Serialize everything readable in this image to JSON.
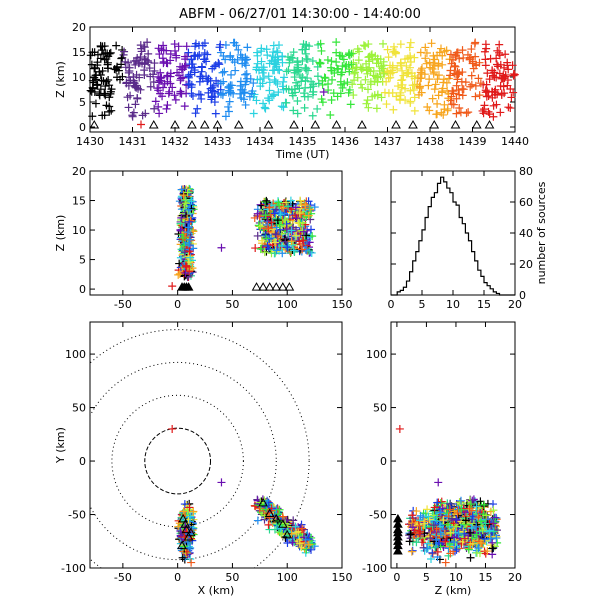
{
  "title": "ABFM - 06/27/01 14:30:00 - 14:40:00",
  "chart_data": [
    {
      "panel": "time-height",
      "type": "scatter",
      "xlabel": "Time (UT)",
      "ylabel": "Z (km)",
      "xlim": [
        1430,
        1440
      ],
      "ylim": [
        -1,
        20
      ],
      "xticks": [
        "1430",
        "1431",
        "1432",
        "1433",
        "1434",
        "1435",
        "1436",
        "1437",
        "1438",
        "1439",
        "1440"
      ],
      "yticks": [
        "0",
        "5",
        "10",
        "15",
        "20"
      ],
      "color_by_time": [
        "#000000",
        "#5a2b8a",
        "#6a0fb0",
        "#1a3ce6",
        "#1f8cf0",
        "#2ad2e0",
        "#2ad890",
        "#35e63a",
        "#9cf23a",
        "#f0e33a",
        "#f7a51d",
        "#f05a1a",
        "#e01a1a"
      ],
      "note_station_markers": "triangles at Z = 0"
    },
    {
      "panel": "x-z",
      "type": "scatter",
      "xlabel": "",
      "ylabel": "Z (km)",
      "xlim": [
        -80,
        150
      ],
      "ylim": [
        -1,
        20
      ],
      "xticks": [
        "-50",
        "0",
        "50",
        "100",
        "150"
      ],
      "yticks": [
        "0",
        "5",
        "10",
        "15",
        "20"
      ],
      "clusters": [
        {
          "x_center": 8,
          "x_spread": 3,
          "z_range": [
            0,
            18
          ]
        },
        {
          "x_center": 100,
          "x_spread": 10,
          "z_range": [
            3,
            16
          ]
        }
      ]
    },
    {
      "panel": "histogram",
      "type": "bar",
      "xlabel": "",
      "ylabel": "number of sources",
      "xlim": [
        0,
        20
      ],
      "ylim": [
        0,
        80
      ],
      "xticks": [
        "0",
        "5",
        "10",
        "15",
        "20"
      ],
      "yticks": [
        "0",
        "20",
        "40",
        "60",
        "80"
      ],
      "bin_width": 0.5,
      "bins_start": [
        0,
        0.5,
        1,
        1.5,
        2,
        2.5,
        3,
        3.5,
        4,
        4.5,
        5,
        5.5,
        6,
        6.5,
        7,
        7.5,
        8,
        8.5,
        9,
        9.5,
        10,
        10.5,
        11,
        11.5,
        12,
        12.5,
        13,
        13.5,
        14,
        14.5,
        15,
        15.5,
        16,
        16.5,
        17,
        17.5,
        18,
        18.5,
        19,
        19.5
      ],
      "counts": [
        0,
        0,
        2,
        3,
        5,
        9,
        15,
        22,
        28,
        35,
        42,
        50,
        57,
        63,
        66,
        72,
        76,
        73,
        69,
        66,
        60,
        58,
        50,
        46,
        40,
        35,
        28,
        22,
        16,
        12,
        8,
        6,
        4,
        2,
        1,
        0,
        0,
        0,
        0,
        0
      ]
    },
    {
      "panel": "plan-view",
      "type": "scatter",
      "xlabel": "X (km)",
      "ylabel": "Y (km)",
      "xlim": [
        -80,
        150
      ],
      "ylim": [
        -100,
        130
      ],
      "xticks": [
        "-50",
        "0",
        "50",
        "100",
        "150"
      ],
      "yticks": [
        "-100",
        "-50",
        "0",
        "50",
        "100"
      ],
      "range_rings_km": [
        30,
        60,
        90,
        120
      ],
      "ring_center": [
        0,
        0
      ],
      "clusters": [
        {
          "x_center": 8,
          "y_center": -65,
          "note": "vertical cluster"
        },
        {
          "x_center": 95,
          "y_center": -55,
          "note": "elongated cluster along NW-SE"
        }
      ],
      "outliers": [
        {
          "x": -5,
          "y": 30
        },
        {
          "x": 40,
          "y": -20
        }
      ]
    },
    {
      "panel": "z-y",
      "type": "scatter",
      "xlabel": "Z (km)",
      "ylabel": "",
      "xlim": [
        -1,
        20
      ],
      "ylim": [
        -100,
        130
      ],
      "xticks": [
        "0",
        "5",
        "10",
        "15",
        "20"
      ],
      "yticks": [
        "-100",
        "-50",
        "0",
        "50",
        "100"
      ]
    }
  ]
}
